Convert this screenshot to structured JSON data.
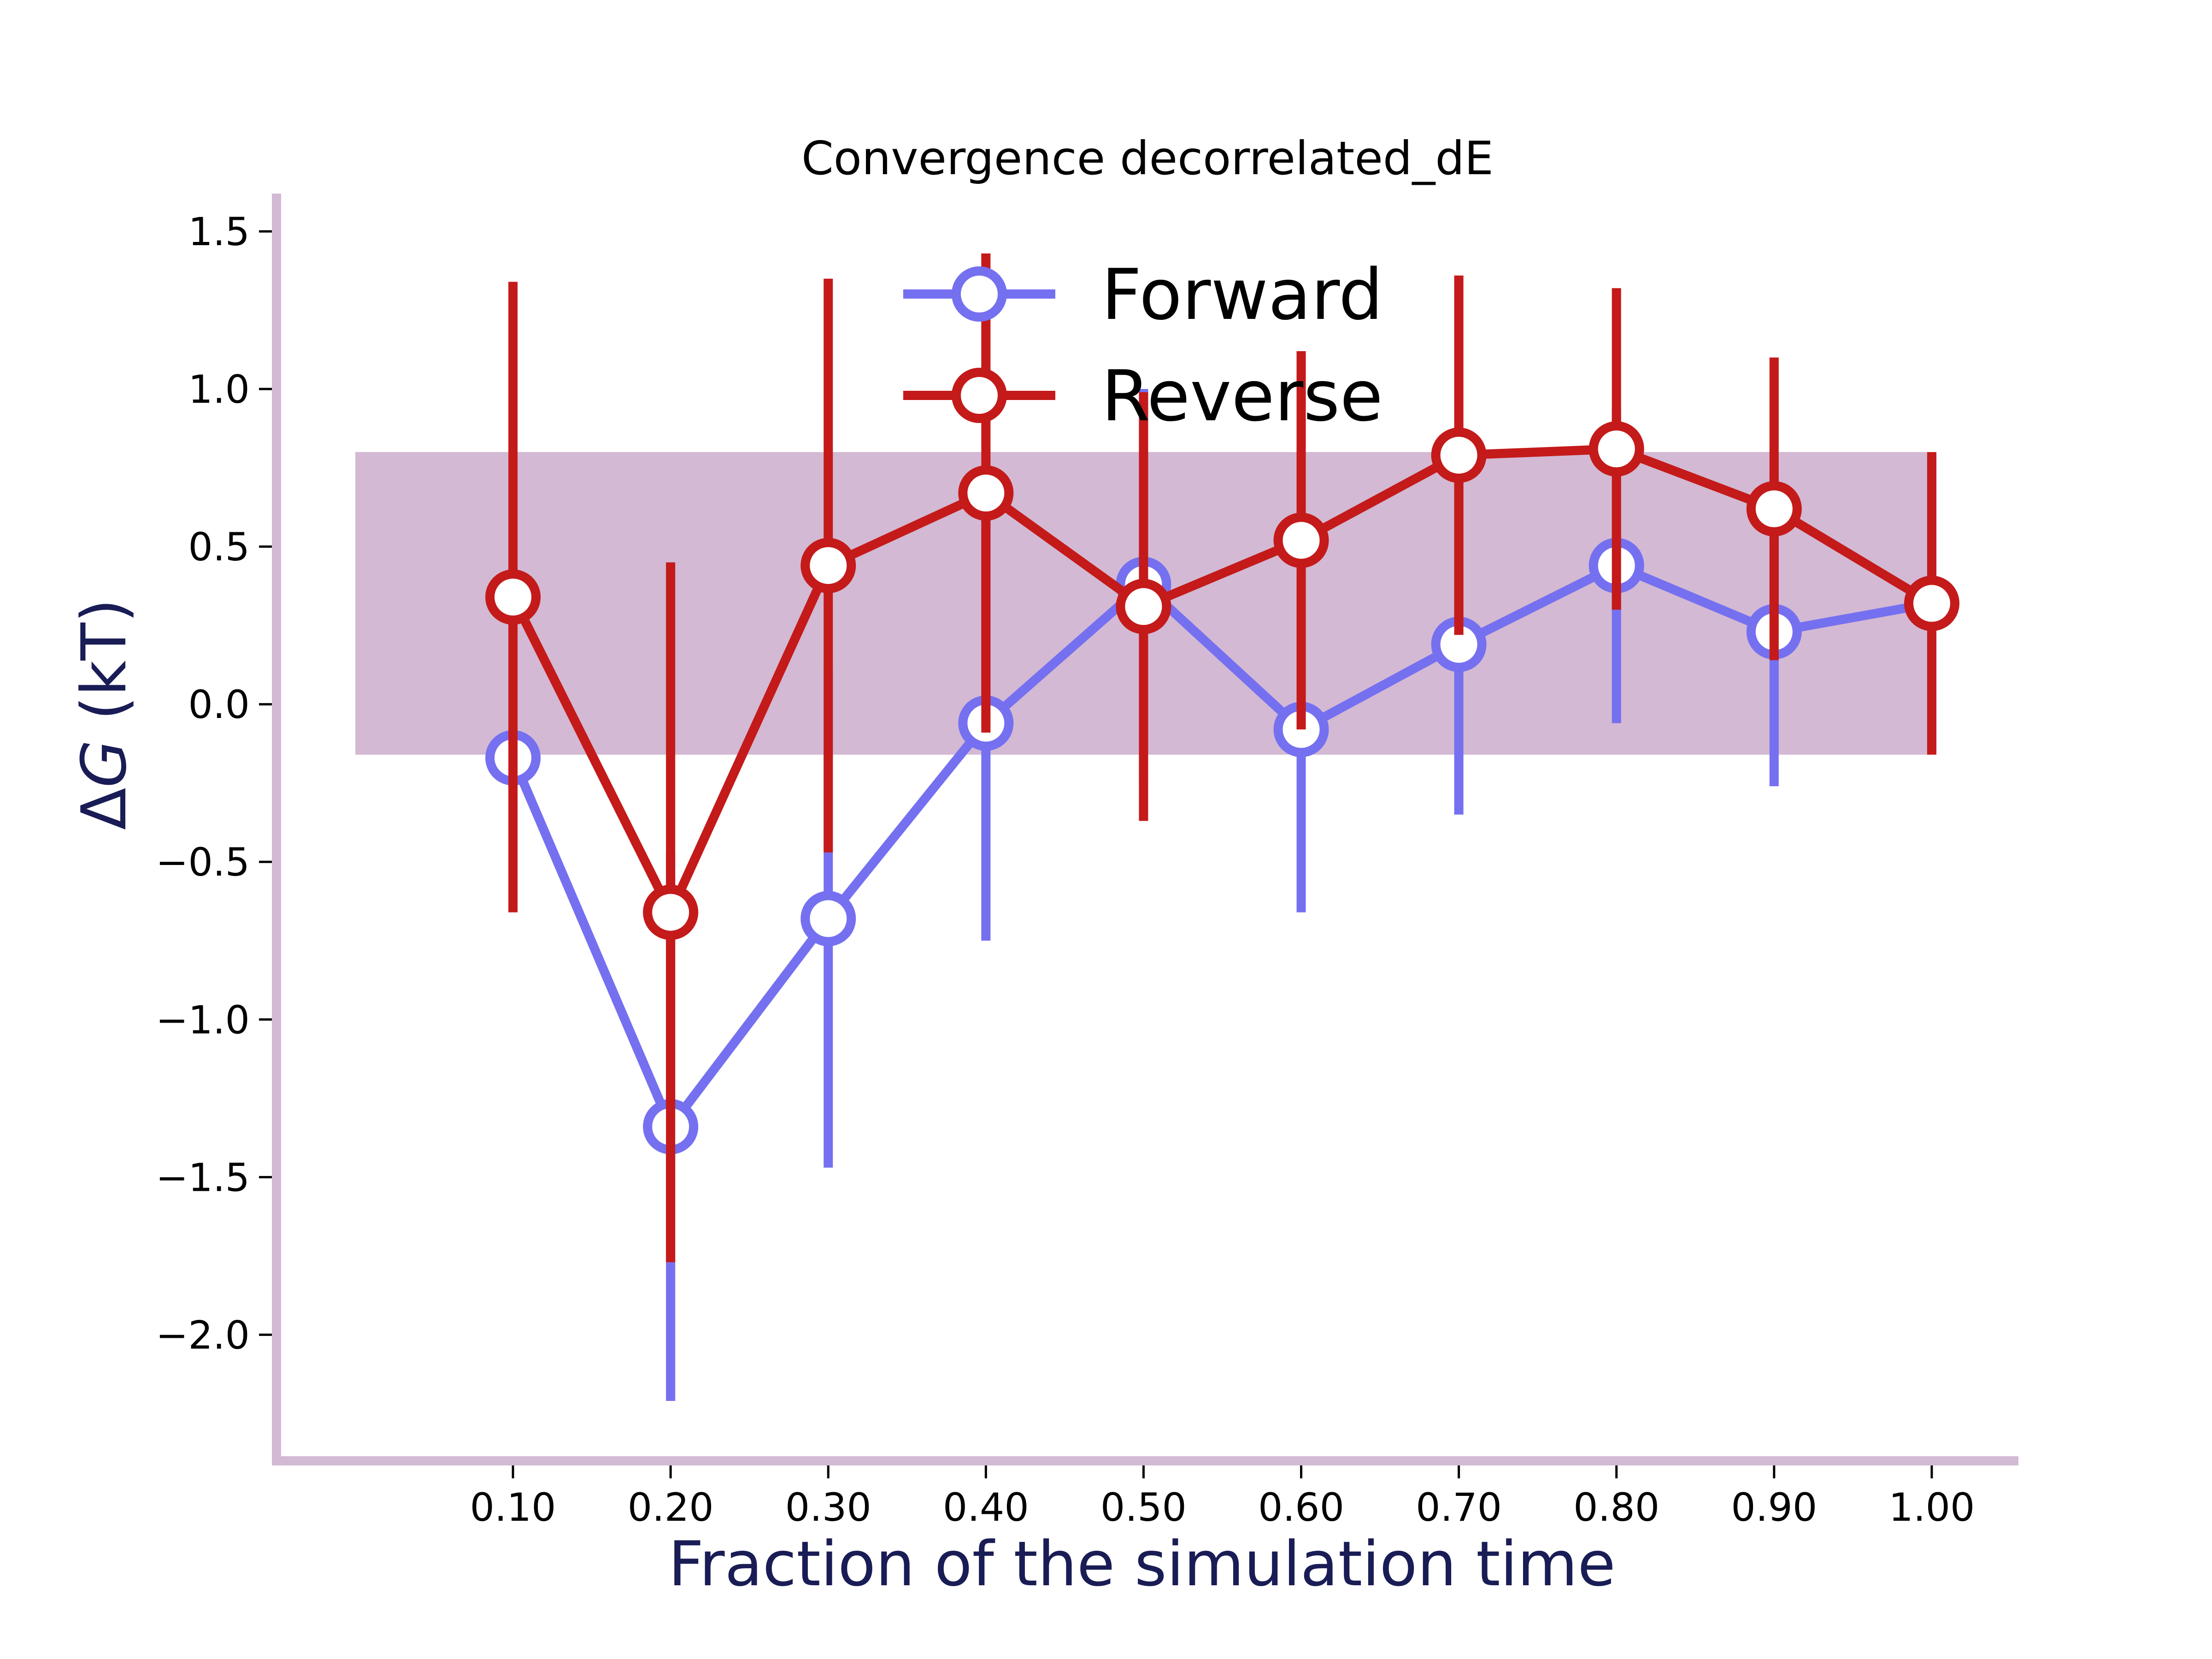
{
  "chart_data": {
    "type": "line",
    "title": "Convergence decorrelated_dE",
    "xlabel": "Fraction of the simulation time",
    "ylabel_symbol": "ΔG",
    "ylabel_unit": " (kT)",
    "x": [
      0.1,
      0.2,
      0.3,
      0.4,
      0.5,
      0.6,
      0.7,
      0.8,
      0.9,
      1.0
    ],
    "x_tick_labels": [
      "0.10",
      "0.20",
      "0.30",
      "0.40",
      "0.50",
      "0.60",
      "0.70",
      "0.80",
      "0.90",
      "1.00"
    ],
    "y_ticks": [
      -2.0,
      -1.5,
      -1.0,
      -0.5,
      0.0,
      0.5,
      1.0,
      1.5
    ],
    "y_tick_labels": [
      "−2.0",
      "−1.5",
      "−1.0",
      "−0.5",
      "0.0",
      "0.5",
      "1.0",
      "1.5"
    ],
    "xlim": [
      -0.05,
      1.055
    ],
    "ylim": [
      -2.4,
      1.62
    ],
    "band": {
      "x_range": [
        0.0,
        1.0
      ],
      "y_range": [
        -0.16,
        0.8
      ],
      "color": "#d3b9d3"
    },
    "series": [
      {
        "name": "Forward",
        "color": "#7570f0",
        "values": [
          -0.17,
          -1.34,
          -0.68,
          -0.06,
          0.38,
          -0.08,
          0.19,
          0.44,
          0.23,
          0.32
        ],
        "errors": [
          0.0,
          0.87,
          0.79,
          0.69,
          0.62,
          0.58,
          0.54,
          0.5,
          0.49,
          0.47
        ]
      },
      {
        "name": "Reverse",
        "color": "#c41a1a",
        "values": [
          0.34,
          -0.66,
          0.44,
          0.67,
          0.31,
          0.52,
          0.79,
          0.81,
          0.62,
          0.32
        ],
        "errors": [
          1.0,
          1.11,
          0.91,
          0.76,
          0.68,
          0.6,
          0.57,
          0.51,
          0.48,
          0.48
        ]
      }
    ],
    "legend_placement": "top-center",
    "grid": false,
    "spine_color": "#d3b9d3",
    "axis_label_color": "#191c55"
  }
}
